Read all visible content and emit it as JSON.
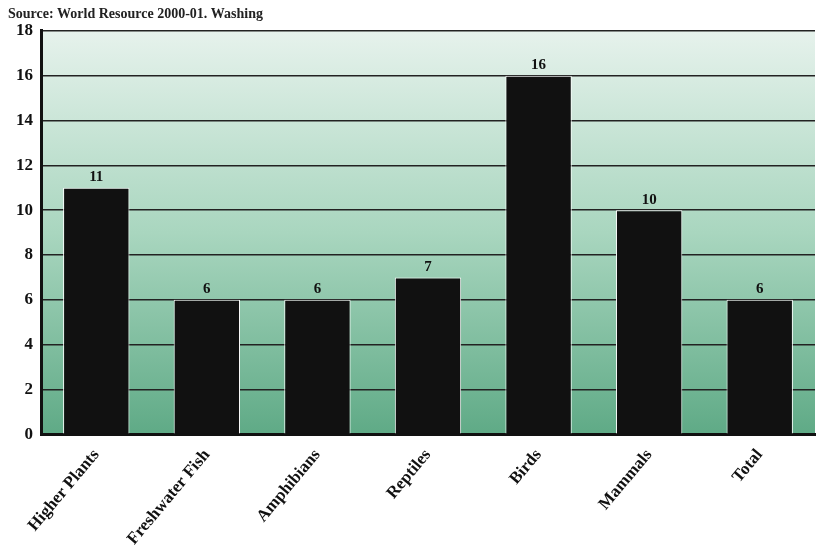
{
  "chart_data": {
    "type": "bar",
    "subtitle": "Source: World Resource 2000-01. Washing",
    "categories": [
      "Higher Plants",
      "Freshwater Fish",
      "Amphibians",
      "Reptiles",
      "Birds",
      "Mammals",
      "Total"
    ],
    "values": [
      11,
      6,
      6,
      7,
      16,
      10,
      6
    ],
    "color": "#111111",
    "ylim": [
      0,
      18
    ],
    "yticks": [
      0,
      2,
      4,
      6,
      8,
      10,
      12,
      14,
      16,
      18
    ],
    "grid": true,
    "data_labels": true
  }
}
